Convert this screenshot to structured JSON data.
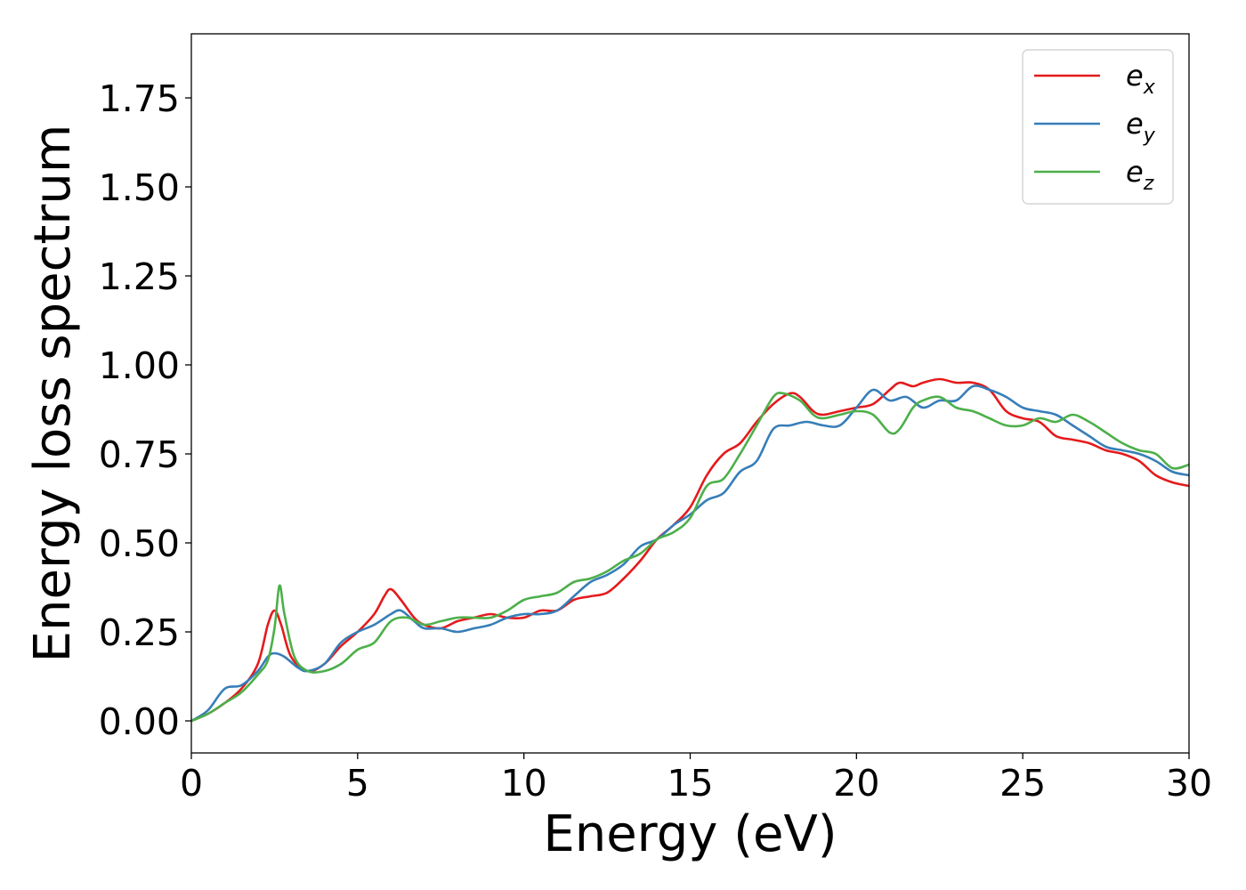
{
  "chart_data": {
    "type": "line",
    "xlabel": "Energy (eV)",
    "ylabel": "Energy loss spectrum",
    "xlim": [
      0,
      30
    ],
    "ylim": [
      -0.09,
      1.93
    ],
    "xticks": [
      0,
      5,
      10,
      15,
      20,
      25,
      30
    ],
    "xtick_labels": [
      "0",
      "5",
      "10",
      "15",
      "20",
      "25",
      "30"
    ],
    "yticks": [
      0,
      0.25,
      0.5,
      0.75,
      1.0,
      1.25,
      1.5,
      1.75
    ],
    "ytick_labels": [
      "0.00",
      "0.25",
      "0.50",
      "0.75",
      "1.00",
      "1.25",
      "1.50",
      "1.75"
    ],
    "grid": false,
    "legend_position": "top-right",
    "series": [
      {
        "name": "e",
        "name_sub": "x",
        "color": "#e41a1c",
        "points": [
          [
            0,
            0
          ],
          [
            0.5,
            0.02
          ],
          [
            1,
            0.05
          ],
          [
            1.5,
            0.09
          ],
          [
            2,
            0.16
          ],
          [
            2.3,
            0.27
          ],
          [
            2.5,
            0.31
          ],
          [
            2.7,
            0.27
          ],
          [
            3,
            0.18
          ],
          [
            3.5,
            0.14
          ],
          [
            4,
            0.16
          ],
          [
            4.5,
            0.21
          ],
          [
            5,
            0.25
          ],
          [
            5.5,
            0.3
          ],
          [
            5.8,
            0.35
          ],
          [
            6,
            0.37
          ],
          [
            6.3,
            0.34
          ],
          [
            6.7,
            0.29
          ],
          [
            7,
            0.27
          ],
          [
            7.5,
            0.26
          ],
          [
            8,
            0.28
          ],
          [
            8.5,
            0.29
          ],
          [
            9,
            0.3
          ],
          [
            9.5,
            0.29
          ],
          [
            10,
            0.29
          ],
          [
            10.5,
            0.31
          ],
          [
            11,
            0.31
          ],
          [
            11.5,
            0.34
          ],
          [
            12,
            0.35
          ],
          [
            12.5,
            0.36
          ],
          [
            13,
            0.4
          ],
          [
            13.5,
            0.45
          ],
          [
            14,
            0.51
          ],
          [
            14.5,
            0.55
          ],
          [
            15,
            0.6
          ],
          [
            15.5,
            0.69
          ],
          [
            16,
            0.75
          ],
          [
            16.5,
            0.78
          ],
          [
            17,
            0.84
          ],
          [
            17.5,
            0.89
          ],
          [
            18,
            0.92
          ],
          [
            18.3,
            0.91
          ],
          [
            18.7,
            0.87
          ],
          [
            19,
            0.86
          ],
          [
            19.5,
            0.87
          ],
          [
            20,
            0.88
          ],
          [
            20.5,
            0.89
          ],
          [
            21,
            0.93
          ],
          [
            21.3,
            0.95
          ],
          [
            21.7,
            0.94
          ],
          [
            22,
            0.95
          ],
          [
            22.5,
            0.96
          ],
          [
            23,
            0.95
          ],
          [
            23.5,
            0.95
          ],
          [
            24,
            0.93
          ],
          [
            24.5,
            0.87
          ],
          [
            25,
            0.85
          ],
          [
            25.5,
            0.84
          ],
          [
            26,
            0.8
          ],
          [
            26.5,
            0.79
          ],
          [
            27,
            0.78
          ],
          [
            27.5,
            0.76
          ],
          [
            28,
            0.75
          ],
          [
            28.5,
            0.73
          ],
          [
            29,
            0.69
          ],
          [
            29.5,
            0.67
          ],
          [
            30,
            0.66
          ]
        ]
      },
      {
        "name": "e",
        "name_sub": "y",
        "color": "#377eb8",
        "points": [
          [
            0,
            0
          ],
          [
            0.5,
            0.03
          ],
          [
            1,
            0.09
          ],
          [
            1.5,
            0.1
          ],
          [
            2,
            0.14
          ],
          [
            2.3,
            0.18
          ],
          [
            2.5,
            0.19
          ],
          [
            2.8,
            0.18
          ],
          [
            3.2,
            0.15
          ],
          [
            3.5,
            0.14
          ],
          [
            4,
            0.16
          ],
          [
            4.5,
            0.22
          ],
          [
            5,
            0.25
          ],
          [
            5.5,
            0.27
          ],
          [
            6,
            0.3
          ],
          [
            6.3,
            0.31
          ],
          [
            6.7,
            0.28
          ],
          [
            7,
            0.26
          ],
          [
            7.5,
            0.26
          ],
          [
            8,
            0.25
          ],
          [
            8.5,
            0.26
          ],
          [
            9,
            0.27
          ],
          [
            9.5,
            0.29
          ],
          [
            10,
            0.3
          ],
          [
            10.5,
            0.3
          ],
          [
            11,
            0.31
          ],
          [
            11.5,
            0.35
          ],
          [
            12,
            0.39
          ],
          [
            12.5,
            0.41
          ],
          [
            13,
            0.44
          ],
          [
            13.5,
            0.49
          ],
          [
            14,
            0.51
          ],
          [
            14.5,
            0.55
          ],
          [
            15,
            0.58
          ],
          [
            15.5,
            0.62
          ],
          [
            16,
            0.64
          ],
          [
            16.5,
            0.7
          ],
          [
            17,
            0.73
          ],
          [
            17.5,
            0.82
          ],
          [
            18,
            0.83
          ],
          [
            18.5,
            0.84
          ],
          [
            19,
            0.83
          ],
          [
            19.5,
            0.83
          ],
          [
            20,
            0.88
          ],
          [
            20.5,
            0.93
          ],
          [
            21,
            0.9
          ],
          [
            21.5,
            0.91
          ],
          [
            22,
            0.88
          ],
          [
            22.5,
            0.9
          ],
          [
            23,
            0.9
          ],
          [
            23.5,
            0.94
          ],
          [
            24,
            0.93
          ],
          [
            24.5,
            0.91
          ],
          [
            25,
            0.88
          ],
          [
            25.5,
            0.87
          ],
          [
            26,
            0.86
          ],
          [
            26.5,
            0.83
          ],
          [
            27,
            0.8
          ],
          [
            27.5,
            0.77
          ],
          [
            28,
            0.76
          ],
          [
            28.5,
            0.75
          ],
          [
            29,
            0.73
          ],
          [
            29.5,
            0.7
          ],
          [
            30,
            0.69
          ]
        ]
      },
      {
        "name": "e",
        "name_sub": "z",
        "color": "#4daf4a",
        "points": [
          [
            0,
            0
          ],
          [
            0.5,
            0.02
          ],
          [
            1,
            0.05
          ],
          [
            1.5,
            0.08
          ],
          [
            2,
            0.13
          ],
          [
            2.3,
            0.17
          ],
          [
            2.5,
            0.26
          ],
          [
            2.65,
            0.38
          ],
          [
            2.8,
            0.3
          ],
          [
            3.1,
            0.18
          ],
          [
            3.5,
            0.14
          ],
          [
            4,
            0.14
          ],
          [
            4.5,
            0.16
          ],
          [
            5,
            0.2
          ],
          [
            5.5,
            0.22
          ],
          [
            6,
            0.28
          ],
          [
            6.5,
            0.29
          ],
          [
            7,
            0.27
          ],
          [
            7.5,
            0.28
          ],
          [
            8,
            0.29
          ],
          [
            8.5,
            0.29
          ],
          [
            9,
            0.29
          ],
          [
            9.5,
            0.31
          ],
          [
            10,
            0.34
          ],
          [
            10.5,
            0.35
          ],
          [
            11,
            0.36
          ],
          [
            11.5,
            0.39
          ],
          [
            12,
            0.4
          ],
          [
            12.5,
            0.42
          ],
          [
            13,
            0.45
          ],
          [
            13.5,
            0.47
          ],
          [
            14,
            0.51
          ],
          [
            14.5,
            0.53
          ],
          [
            15,
            0.57
          ],
          [
            15.5,
            0.66
          ],
          [
            16,
            0.68
          ],
          [
            16.5,
            0.75
          ],
          [
            17,
            0.83
          ],
          [
            17.5,
            0.91
          ],
          [
            17.8,
            0.92
          ],
          [
            18.3,
            0.9
          ],
          [
            18.7,
            0.86
          ],
          [
            19,
            0.85
          ],
          [
            19.5,
            0.86
          ],
          [
            20,
            0.87
          ],
          [
            20.5,
            0.86
          ],
          [
            21,
            0.81
          ],
          [
            21.3,
            0.82
          ],
          [
            21.7,
            0.88
          ],
          [
            22,
            0.9
          ],
          [
            22.5,
            0.91
          ],
          [
            23,
            0.88
          ],
          [
            23.5,
            0.87
          ],
          [
            24,
            0.85
          ],
          [
            24.5,
            0.83
          ],
          [
            25,
            0.83
          ],
          [
            25.5,
            0.85
          ],
          [
            26,
            0.84
          ],
          [
            26.5,
            0.86
          ],
          [
            27,
            0.84
          ],
          [
            27.5,
            0.81
          ],
          [
            28,
            0.78
          ],
          [
            28.5,
            0.76
          ],
          [
            29,
            0.75
          ],
          [
            29.5,
            0.71
          ],
          [
            30,
            0.72
          ]
        ]
      }
    ]
  }
}
